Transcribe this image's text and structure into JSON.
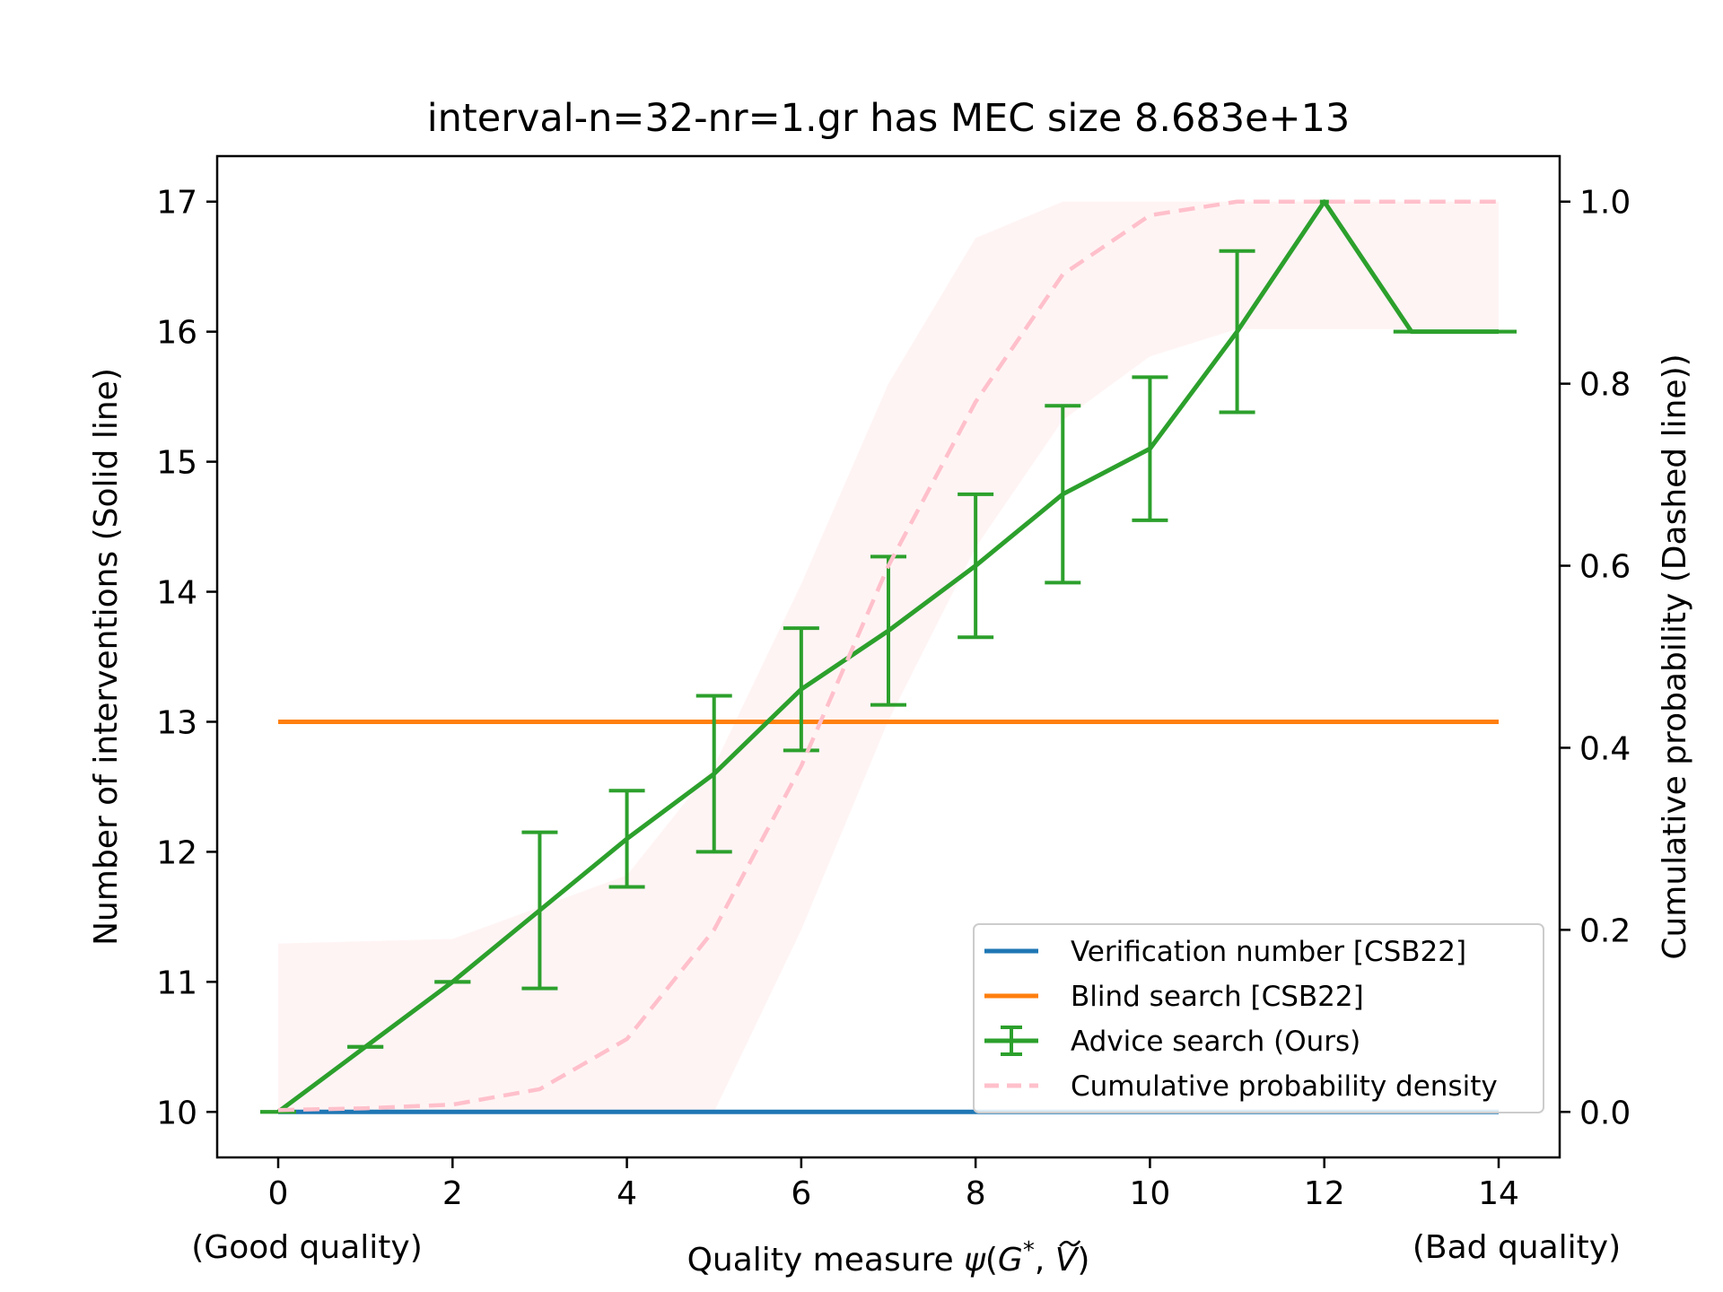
{
  "chart_data": {
    "type": "line",
    "title": "interval-n=32-nr=1.gr has MEC size 8.683e+13",
    "xlabel": "Quality measure ψ(G*, Ṽ)",
    "xlabel_parts": {
      "prefix": "Quality measure ",
      "psi": "ψ",
      "open": "(",
      "G": "G",
      "star": "*",
      "comma": ", ",
      "V": "V",
      "close": ")"
    },
    "x_annotations": {
      "left": "(Good quality)",
      "right": "(Bad quality)"
    },
    "ylabel_left": "Number of interventions (Solid line)",
    "ylabel_right": "Cumulative probability (Dashed line))",
    "xlim": [
      -0.7,
      14.7
    ],
    "ylim_left": [
      9.65,
      17.35
    ],
    "ylim_right": [
      -0.05,
      1.05
    ],
    "xticks": [
      0,
      2,
      4,
      6,
      8,
      10,
      12,
      14
    ],
    "yticks_left": [
      10,
      11,
      12,
      13,
      14,
      15,
      16,
      17
    ],
    "yticks_right": [
      "0.0",
      "0.2",
      "0.4",
      "0.6",
      "0.8",
      "1.0"
    ],
    "legend_position": "lower-right",
    "series": [
      {
        "name": "Verification number [CSB22]",
        "color": "#1f77b4",
        "style": "solid",
        "axis": "left",
        "x": [
          0,
          14
        ],
        "y": [
          10,
          10
        ]
      },
      {
        "name": "Blind search [CSB22]",
        "color": "#ff7f0e",
        "style": "solid",
        "axis": "left",
        "x": [
          0,
          14
        ],
        "y": [
          13,
          13
        ]
      },
      {
        "name": "Advice search (Ours)",
        "color": "#2ca02c",
        "style": "errorbar",
        "axis": "left",
        "x": [
          0,
          1,
          2,
          3,
          4,
          5,
          6,
          7,
          8,
          9,
          10,
          11,
          12,
          13,
          14
        ],
        "y": [
          10,
          10.5,
          11,
          11.55,
          12.1,
          12.6,
          13.25,
          13.7,
          14.2,
          14.75,
          15.1,
          16,
          17,
          16,
          16
        ],
        "err": [
          0,
          0,
          0,
          0.6,
          0.37,
          0.6,
          0.47,
          0.57,
          0.55,
          0.68,
          0.55,
          0.62,
          0,
          0,
          0
        ]
      },
      {
        "name": "Cumulative probability density",
        "color": "#ffc0cb",
        "style": "dashed",
        "axis": "right",
        "x": [
          0,
          1,
          2,
          3,
          4,
          5,
          6,
          7,
          8,
          9,
          10,
          11,
          12,
          13,
          14
        ],
        "y": [
          0.002,
          0.004,
          0.008,
          0.025,
          0.08,
          0.2,
          0.38,
          0.6,
          0.78,
          0.92,
          0.985,
          1.0,
          1.0,
          1.0,
          1.0
        ]
      }
    ],
    "band": {
      "color": "#fff0f0",
      "axis": "right",
      "x": [
        0,
        2,
        4,
        5,
        6,
        7,
        8,
        9,
        10,
        11,
        12,
        13,
        14
      ],
      "upper": [
        0.185,
        0.19,
        0.26,
        0.38,
        0.58,
        0.8,
        0.96,
        1.0,
        1.0,
        1.0,
        1.0,
        1.0,
        1.0
      ],
      "lower": [
        0.0,
        0.0,
        0.0,
        0.0,
        0.2,
        0.43,
        0.62,
        0.76,
        0.83,
        0.86,
        0.86,
        0.86,
        0.86
      ]
    }
  }
}
